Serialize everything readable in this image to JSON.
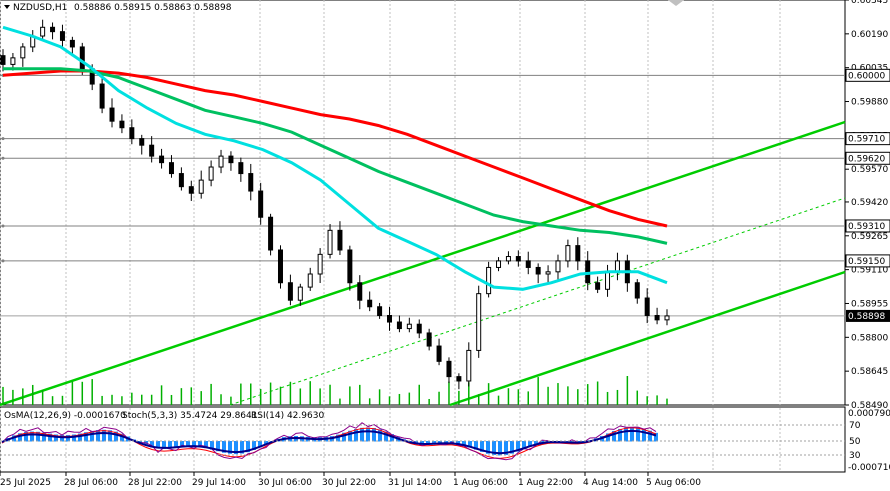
{
  "header": {
    "symbol": "NZDUSD,H1",
    "ohlc": "0.58886 0.58915 0.58863 0.58898"
  },
  "indicator_header": {
    "osma": "OsMA(12,26,9) -0.0001670",
    "stoch": "Stoch(5,3,3) 35.4724 29.8641",
    "rsi": "RSI(14) 42.9630"
  },
  "chart_data": {
    "type": "line",
    "title": "NZDUSD,H1",
    "price_axis": {
      "range": [
        0.5849,
        0.60345
      ],
      "ticks": [
        "0.60345",
        "0.60190",
        "0.60035",
        "0.59880",
        "0.59725",
        "0.59570",
        "0.59420",
        "0.59265",
        "0.59110",
        "0.58955",
        "0.58800",
        "0.58645",
        "0.58490"
      ]
    },
    "level_lines": [
      {
        "label": "0.60000",
        "value": 0.6
      },
      {
        "label": "0.59710",
        "value": 0.5971
      },
      {
        "label": "0.59620",
        "value": 0.5962
      },
      {
        "label": "0.59310",
        "value": 0.5931
      },
      {
        "label": "0.59150",
        "value": 0.5915
      }
    ],
    "current_price": {
      "label": "0.58898",
      "value": 0.58898
    },
    "x_labels": [
      "25 Jul 2025",
      "28 Jul 06:00",
      "28 Jul 22:00",
      "29 Jul 14:00",
      "30 Jul 06:00",
      "30 Jul 22:00",
      "31 Jul 14:00",
      "1 Aug 06:00",
      "1 Aug 22:00",
      "4 Aug 14:00",
      "5 Aug 06:00"
    ],
    "closes": [
      0.6005,
      0.6008,
      0.6013,
      0.6018,
      0.6022,
      0.602,
      0.6016,
      0.6013,
      0.6003,
      0.5996,
      0.5985,
      0.5979,
      0.5976,
      0.5971,
      0.5968,
      0.5963,
      0.596,
      0.5955,
      0.5949,
      0.5946,
      0.5952,
      0.5958,
      0.5963,
      0.596,
      0.5955,
      0.5947,
      0.5935,
      0.592,
      0.5905,
      0.5897,
      0.5903,
      0.5909,
      0.5918,
      0.5929,
      0.592,
      0.5905,
      0.5897,
      0.5894,
      0.589,
      0.5887,
      0.5884,
      0.5886,
      0.5882,
      0.5876,
      0.5869,
      0.5862,
      0.586,
      0.5874,
      0.59,
      0.5912,
      0.5915,
      0.5917,
      0.5915,
      0.5912,
      0.5909,
      0.591,
      0.5915,
      0.5922,
      0.5915,
      0.5905,
      0.5902,
      0.591,
      0.5915,
      0.5905,
      0.5898,
      0.589,
      0.5888,
      0.58898
    ],
    "moving_averages": [
      {
        "color": "#ff0000",
        "values": [
          0.6,
          0.6001,
          0.6002,
          0.6002,
          0.6001,
          0.5999,
          0.5996,
          0.5993,
          0.5991,
          0.5988,
          0.5985,
          0.5982,
          0.598,
          0.5977,
          0.5973,
          0.5968,
          0.5963,
          0.5958,
          0.5953,
          0.5948,
          0.5943,
          0.5938,
          0.5934,
          0.5931
        ]
      },
      {
        "color": "#00c060",
        "values": [
          0.6003,
          0.6003,
          0.6003,
          0.6002,
          0.5999,
          0.5994,
          0.5989,
          0.5984,
          0.5981,
          0.5978,
          0.5974,
          0.5968,
          0.5962,
          0.5956,
          0.5951,
          0.5946,
          0.5941,
          0.5936,
          0.5933,
          0.5931,
          0.5929,
          0.5928,
          0.5926,
          0.5923
        ]
      },
      {
        "color": "#00e0e0",
        "values": [
          0.6022,
          0.6018,
          0.6013,
          0.6004,
          0.5993,
          0.5985,
          0.5978,
          0.5973,
          0.597,
          0.5966,
          0.596,
          0.5952,
          0.5941,
          0.593,
          0.5924,
          0.5918,
          0.591,
          0.5903,
          0.5902,
          0.5905,
          0.5909,
          0.591,
          0.591,
          0.5905
        ]
      }
    ],
    "indicator_axis": [
      "0.0007902",
      "70",
      "50",
      "30",
      "-0.0007100"
    ],
    "grid": true
  },
  "colors": {
    "background": "#ffffff",
    "grid": "#c0c0c0",
    "candles": "#000000",
    "trend": "#00cc00",
    "ma_slow": "#ff0000",
    "ma_mid": "#00c060",
    "ma_fast": "#00e0e0",
    "osma": "#1e90ff",
    "stoch_main": "#00008b",
    "stoch_signal": "#ff0000",
    "rsi": "#8b008b"
  }
}
